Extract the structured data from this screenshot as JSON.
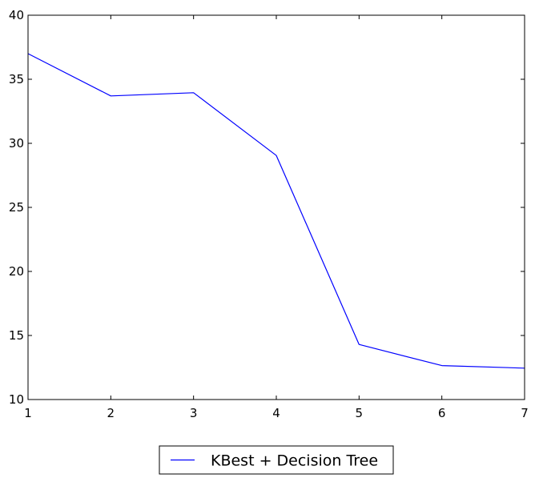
{
  "chart_data": {
    "type": "line",
    "title": "",
    "xlabel": "",
    "ylabel": "",
    "xlim": [
      1,
      7
    ],
    "ylim": [
      10,
      40
    ],
    "x_ticks": [
      1,
      2,
      3,
      4,
      5,
      6,
      7
    ],
    "y_ticks": [
      10,
      15,
      20,
      25,
      30,
      35,
      40
    ],
    "grid": false,
    "legend_position": "bottom-center",
    "series": [
      {
        "name": "KBest + Decision Tree",
        "color": "#0000ff",
        "x": [
          1,
          2,
          3,
          4,
          5,
          6,
          7
        ],
        "y": [
          37.0,
          33.7,
          33.95,
          29.05,
          14.3,
          12.65,
          12.45
        ]
      }
    ]
  }
}
